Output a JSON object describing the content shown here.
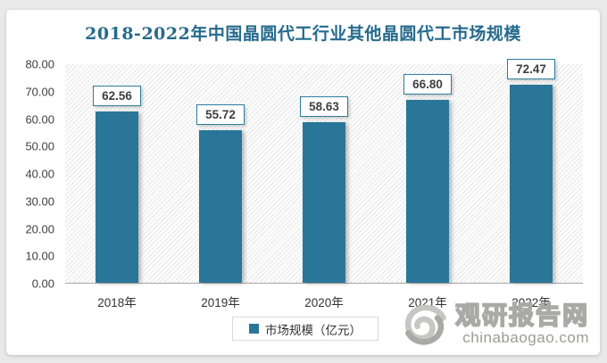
{
  "title": "2018-2022年中国晶圆代工行业其他晶圆代工市场规模",
  "chart_data": {
    "type": "bar",
    "categories": [
      "2018年",
      "2019年",
      "2020年",
      "2021年",
      "2022年"
    ],
    "values": [
      62.56,
      55.72,
      58.63,
      66.8,
      72.47
    ],
    "value_labels": [
      "62.56",
      "55.72",
      "58.63",
      "66.80",
      "72.47"
    ],
    "title": "2018-2022年中国晶圆代工行业其他晶圆代工市场规模",
    "xlabel": "",
    "ylabel": "",
    "ylim": [
      0,
      80
    ],
    "ytick_step": 10,
    "yticks": [
      "0.00",
      "10.00",
      "20.00",
      "30.00",
      "40.00",
      "50.00",
      "60.00",
      "70.00",
      "80.00"
    ],
    "grid": false,
    "plot_background": "diagonal-hatch",
    "legend_position": "bottom",
    "series_name": "市场规模（亿元）",
    "bar_color": "#2a7698"
  },
  "legend": {
    "label": "市场规模（亿元）"
  },
  "watermark": {
    "logo": "swirl-logo",
    "name": "观研报告网",
    "domain": "chinabaogao.com"
  },
  "colors": {
    "title": "#266b8d",
    "bar": "#2a7698",
    "axis_line": "#a6a6a6",
    "tick_text": "#404040",
    "page_background": "#e9e9e9"
  }
}
